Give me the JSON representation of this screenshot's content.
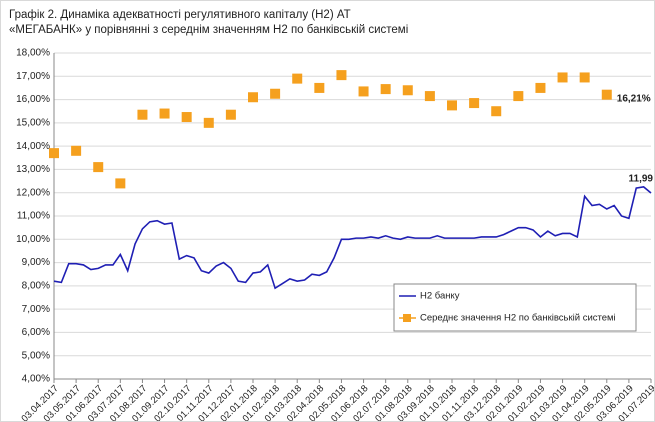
{
  "chart_data": {
    "type": "line",
    "title": "Графік 2. Динаміка адекватності регулятивного капіталу (Н2) АТ «МЕГАБАНК» у порівнянні з середнім значенням Н2 по банківській системі",
    "categories": [
      "03.04.2017",
      null,
      null,
      "03.05.2017",
      null,
      null,
      "01.06.2017",
      null,
      null,
      "03.07.2017",
      null,
      null,
      "01.08.2017",
      null,
      null,
      "01.09.2017",
      null,
      null,
      "02.10.2017",
      null,
      null,
      "01.11.2017",
      null,
      null,
      "01.12.2017",
      null,
      null,
      "02.01.2018",
      null,
      null,
      "01.02.2018",
      null,
      null,
      "01.03.2018",
      null,
      null,
      "02.04.2018",
      null,
      null,
      "02.05.2018",
      null,
      null,
      "01.06.2018",
      null,
      null,
      "02.07.2018",
      null,
      null,
      "01.08.2018",
      null,
      null,
      "03.09.2018",
      null,
      null,
      "01.10.2018",
      null,
      null,
      "01.11.2018",
      null,
      null,
      "03.12.2018",
      null,
      null,
      "02.01.2019",
      null,
      null,
      "01.02.2019",
      null,
      null,
      "01.03.2019",
      null,
      null,
      "01.04.2019",
      null,
      null,
      "02.05.2019",
      null,
      null,
      "03.06.2019",
      null,
      null,
      "01.07.2019"
    ],
    "series": [
      {
        "name": "Н2 банку",
        "color": "#1f1fb4",
        "marker": "none",
        "values": [
          8.2,
          8.15,
          8.95,
          8.95,
          8.9,
          8.7,
          8.75,
          8.9,
          8.9,
          9.35,
          8.65,
          9.8,
          10.45,
          10.75,
          10.8,
          10.65,
          10.7,
          9.15,
          9.3,
          9.2,
          8.65,
          8.55,
          8.85,
          9.0,
          8.75,
          8.2,
          8.15,
          8.55,
          8.6,
          8.9,
          7.9,
          8.1,
          8.3,
          8.2,
          8.25,
          8.5,
          8.45,
          8.6,
          9.2,
          10.0,
          10.0,
          10.05,
          10.05,
          10.1,
          10.05,
          10.15,
          10.05,
          10.0,
          10.1,
          10.05,
          10.05,
          10.05,
          10.15,
          10.05,
          10.05,
          10.05,
          10.05,
          10.05,
          10.1,
          10.1,
          10.1,
          10.2,
          10.35,
          10.5,
          10.5,
          10.4,
          10.1,
          10.35,
          10.15,
          10.25,
          10.25,
          10.1,
          11.85,
          11.45,
          11.5,
          11.3,
          11.45,
          11.0,
          10.9,
          12.2,
          12.25,
          11.99
        ],
        "value_labels": [
          null,
          null,
          null,
          null,
          null,
          null,
          null,
          null,
          null,
          null,
          null,
          null,
          null,
          null,
          null,
          null,
          null,
          null,
          null,
          null,
          null,
          null,
          null,
          null,
          null,
          null,
          null,
          null,
          null,
          null,
          null,
          null,
          null,
          null,
          null,
          null,
          null,
          null,
          null,
          null,
          null,
          null,
          null,
          null,
          null,
          null,
          null,
          null,
          null,
          null,
          null,
          null,
          null,
          null,
          null,
          null,
          null,
          null,
          null,
          null,
          null,
          null,
          null,
          null,
          null,
          null,
          null,
          null,
          null,
          null,
          null,
          null,
          null,
          null,
          null,
          null,
          null,
          null,
          null,
          null,
          null,
          "11,99"
        ]
      },
      {
        "name": "Середнє значення Н2 по банківській системі",
        "color": "#f5a01e",
        "marker": "square",
        "values": [
          13.7,
          null,
          null,
          13.8,
          null,
          null,
          13.1,
          null,
          null,
          12.4,
          null,
          null,
          15.35,
          null,
          null,
          15.4,
          null,
          null,
          15.25,
          null,
          null,
          15.0,
          null,
          null,
          15.35,
          null,
          null,
          16.1,
          null,
          null,
          16.25,
          null,
          null,
          16.9,
          null,
          null,
          16.5,
          null,
          null,
          17.05,
          null,
          null,
          16.35,
          null,
          null,
          16.45,
          null,
          null,
          16.4,
          null,
          null,
          16.15,
          null,
          null,
          15.75,
          null,
          null,
          15.85,
          null,
          null,
          15.5,
          null,
          null,
          16.15,
          null,
          null,
          16.5,
          null,
          null,
          16.95,
          null,
          null,
          16.95,
          null,
          null,
          16.21,
          null,
          null,
          null,
          null,
          null,
          null
        ],
        "value_labels": [
          null,
          null,
          null,
          null,
          null,
          null,
          null,
          null,
          null,
          null,
          null,
          null,
          null,
          null,
          null,
          null,
          null,
          null,
          null,
          null,
          null,
          null,
          null,
          null,
          null,
          null,
          null,
          null,
          null,
          null,
          null,
          null,
          null,
          null,
          null,
          null,
          null,
          null,
          null,
          null,
          null,
          null,
          null,
          null,
          null,
          null,
          null,
          null,
          null,
          null,
          null,
          null,
          null,
          null,
          null,
          null,
          null,
          null,
          null,
          null,
          null,
          null,
          null,
          null,
          null,
          null,
          null,
          null,
          null,
          null,
          null,
          null,
          null,
          null,
          null,
          "16,21%",
          null,
          null,
          null,
          null,
          null,
          null
        ]
      }
    ],
    "ylim": [
      4,
      18
    ],
    "yticks": [
      {
        "value": 4,
        "label": "4,00%"
      },
      {
        "value": 5,
        "label": "5,00%"
      },
      {
        "value": 6,
        "label": "6,00%"
      },
      {
        "value": 7,
        "label": "7,00%"
      },
      {
        "value": 8,
        "label": "8,00%"
      },
      {
        "value": 9,
        "label": "9,00%"
      },
      {
        "value": 10,
        "label": "10,00%"
      },
      {
        "value": 11,
        "label": "11,00%"
      },
      {
        "value": 12,
        "label": "12,00%"
      },
      {
        "value": 13,
        "label": "13,00%"
      },
      {
        "value": 14,
        "label": "14,00%"
      },
      {
        "value": 15,
        "label": "15,00%"
      },
      {
        "value": 16,
        "label": "16,00%"
      },
      {
        "value": 17,
        "label": "17,00%"
      },
      {
        "value": 18,
        "label": "18,00%"
      }
    ],
    "grid": true,
    "legend": "lower right"
  }
}
